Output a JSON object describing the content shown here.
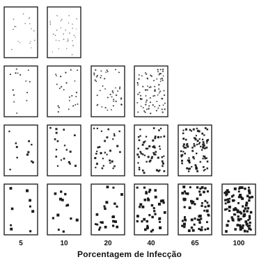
{
  "chart_data": {
    "type": "diagram",
    "description_source": "infection-severity scale cards arranged by infection percentage",
    "xlabel": "Porcentagem de Infecção",
    "columns": [
      {
        "label": "5",
        "value": 5
      },
      {
        "label": "10",
        "value": 10
      },
      {
        "label": "20",
        "value": 20
      },
      {
        "label": "40",
        "value": 40
      },
      {
        "label": "65",
        "value": 65
      },
      {
        "label": "100",
        "value": 100
      }
    ],
    "rows": [
      {
        "cards": 2,
        "dot_style": "fine"
      },
      {
        "cards": 4,
        "dot_style": "small"
      },
      {
        "cards": 5,
        "dot_style": "medium"
      },
      {
        "cards": 6,
        "dot_style": "large"
      }
    ]
  },
  "colors": {
    "background": "#ffffff",
    "ink": "#1a1a1a"
  }
}
